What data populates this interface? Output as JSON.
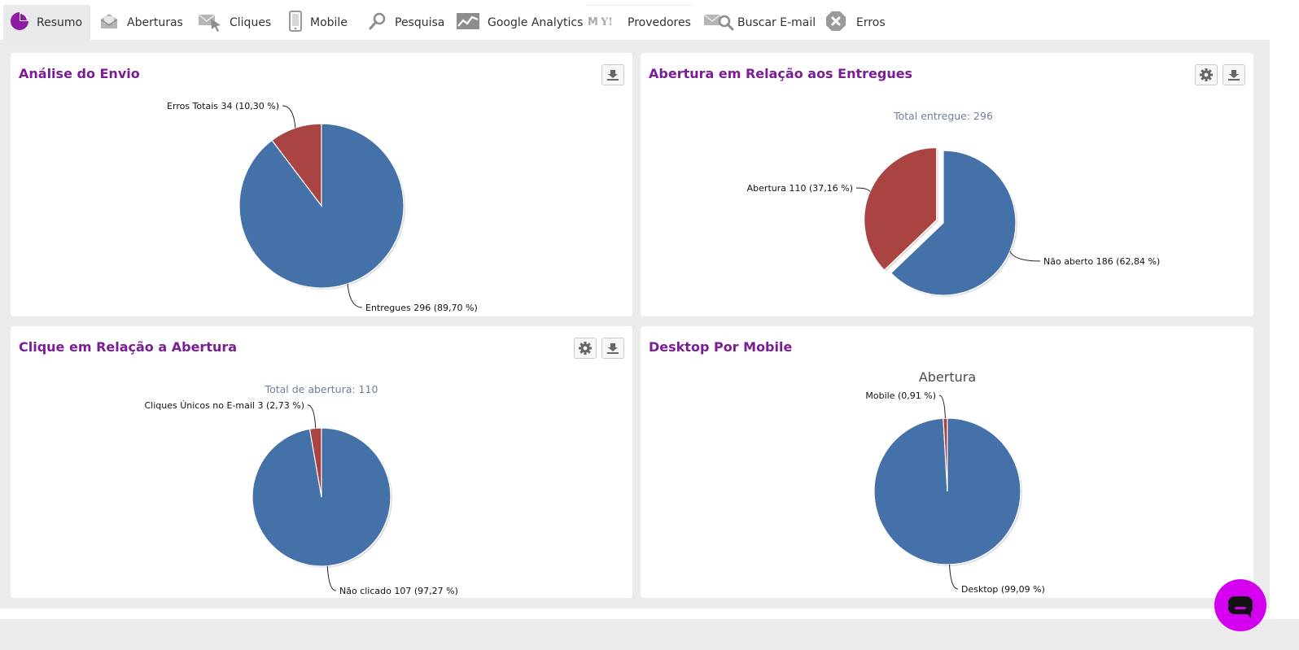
{
  "tabs": [
    {
      "label": "Resumo",
      "icon": "pie-chart-icon"
    },
    {
      "label": "Aberturas",
      "icon": "open-envelope-icon"
    },
    {
      "label": "Cliques",
      "icon": "click-envelope-icon"
    },
    {
      "label": "Mobile",
      "icon": "mobile-phone-icon"
    },
    {
      "label": "Pesquisa",
      "icon": "search-icon"
    },
    {
      "label": "Google Analytics",
      "icon": "line-chart-icon"
    },
    {
      "label": "Provedores",
      "icon": "providers-logo-icon"
    },
    {
      "label": "Buscar E-mail",
      "icon": "search-email-icon"
    },
    {
      "label": "Erros",
      "icon": "error-icon"
    }
  ],
  "colors": {
    "accent": "#7a1e93",
    "series_blue": "#4472a8",
    "series_red": "#a94442",
    "chat": "#d400f0"
  },
  "panels": [
    {
      "title": "Análise do Envio",
      "tools": [
        "download-icon"
      ]
    },
    {
      "title": "Abertura em Relação aos Entregues",
      "tools": [
        "gear-icon",
        "download-icon"
      ]
    },
    {
      "title": "Clique em Relação a Abertura",
      "tools": [
        "gear-icon",
        "download-icon"
      ]
    },
    {
      "title": "Desktop Por Mobile",
      "tools": []
    }
  ],
  "chart_data": [
    {
      "type": "pie",
      "title": "",
      "subtitle": "",
      "slices": [
        {
          "label": "Entregues 296 (89,70 %)",
          "value": 89.7,
          "color": "#4472a8"
        },
        {
          "label": "Erros Totais 34 (10,30 %)",
          "value": 10.3,
          "color": "#a94442"
        }
      ]
    },
    {
      "type": "pie",
      "title": "",
      "subtitle": "Total entregue: 296",
      "slices": [
        {
          "label": "Não aberto 186 (62,84 %)",
          "value": 62.84,
          "color": "#4472a8"
        },
        {
          "label": "Abertura 110 (37,16 %)",
          "value": 37.16,
          "color": "#a94442",
          "exploded": true
        }
      ]
    },
    {
      "type": "pie",
      "title": "",
      "subtitle": "Total de abertura: 110",
      "slices": [
        {
          "label": "Não clicado 107 (97,27 %)",
          "value": 97.27,
          "color": "#4472a8"
        },
        {
          "label": "Cliques Únicos no E-mail 3 (2,73 %)",
          "value": 2.73,
          "color": "#a94442"
        }
      ]
    },
    {
      "type": "pie",
      "title": "Abertura",
      "subtitle": "",
      "slices": [
        {
          "label": "Desktop (99,09 %)",
          "value": 99.09,
          "color": "#4472a8"
        },
        {
          "label": "Mobile (0,91 %)",
          "value": 0.91,
          "color": "#a94442"
        }
      ]
    }
  ]
}
